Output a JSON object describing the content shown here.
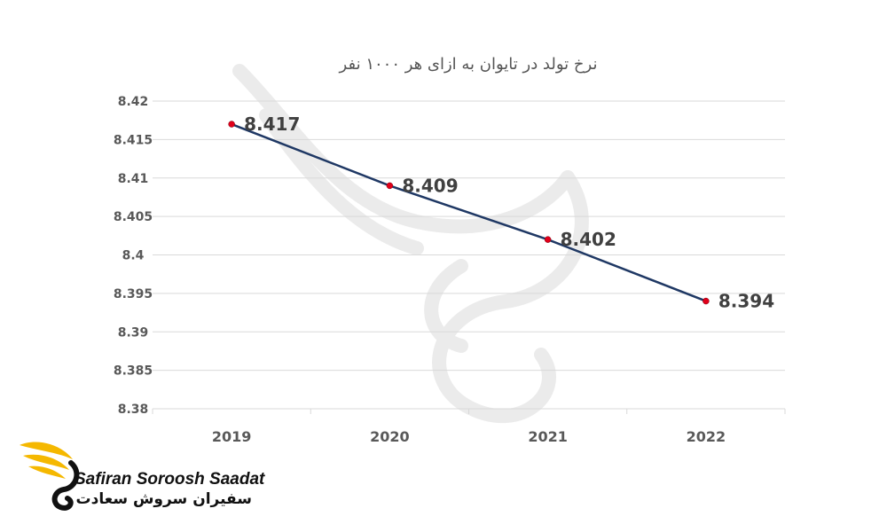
{
  "chart_data": {
    "type": "line",
    "title": "نرخ تولد در تایوان به ازای هر ۱۰۰۰ نفر",
    "categories": [
      "2019",
      "2020",
      "2021",
      "2022"
    ],
    "values": [
      8.417,
      8.409,
      8.402,
      8.394
    ],
    "data_labels": [
      "8.417",
      "8.409",
      "8.402",
      "8.394"
    ],
    "ylim": [
      8.38,
      8.42
    ],
    "y_ticks": [
      "8.38",
      "8.385",
      "8.39",
      "8.395",
      "8.4",
      "8.405",
      "8.41",
      "8.415",
      "8.42"
    ],
    "xlabel": "",
    "ylabel": "",
    "grid": true,
    "line_color": "#1f3864",
    "marker_color": "#e0001a"
  },
  "brand": {
    "name_en": "Safiran Soroosh Saadat",
    "name_fa": "سفیران سروش سعادت",
    "logo_icon": "swan-wing-logo",
    "logo_color": "#f5b800"
  }
}
